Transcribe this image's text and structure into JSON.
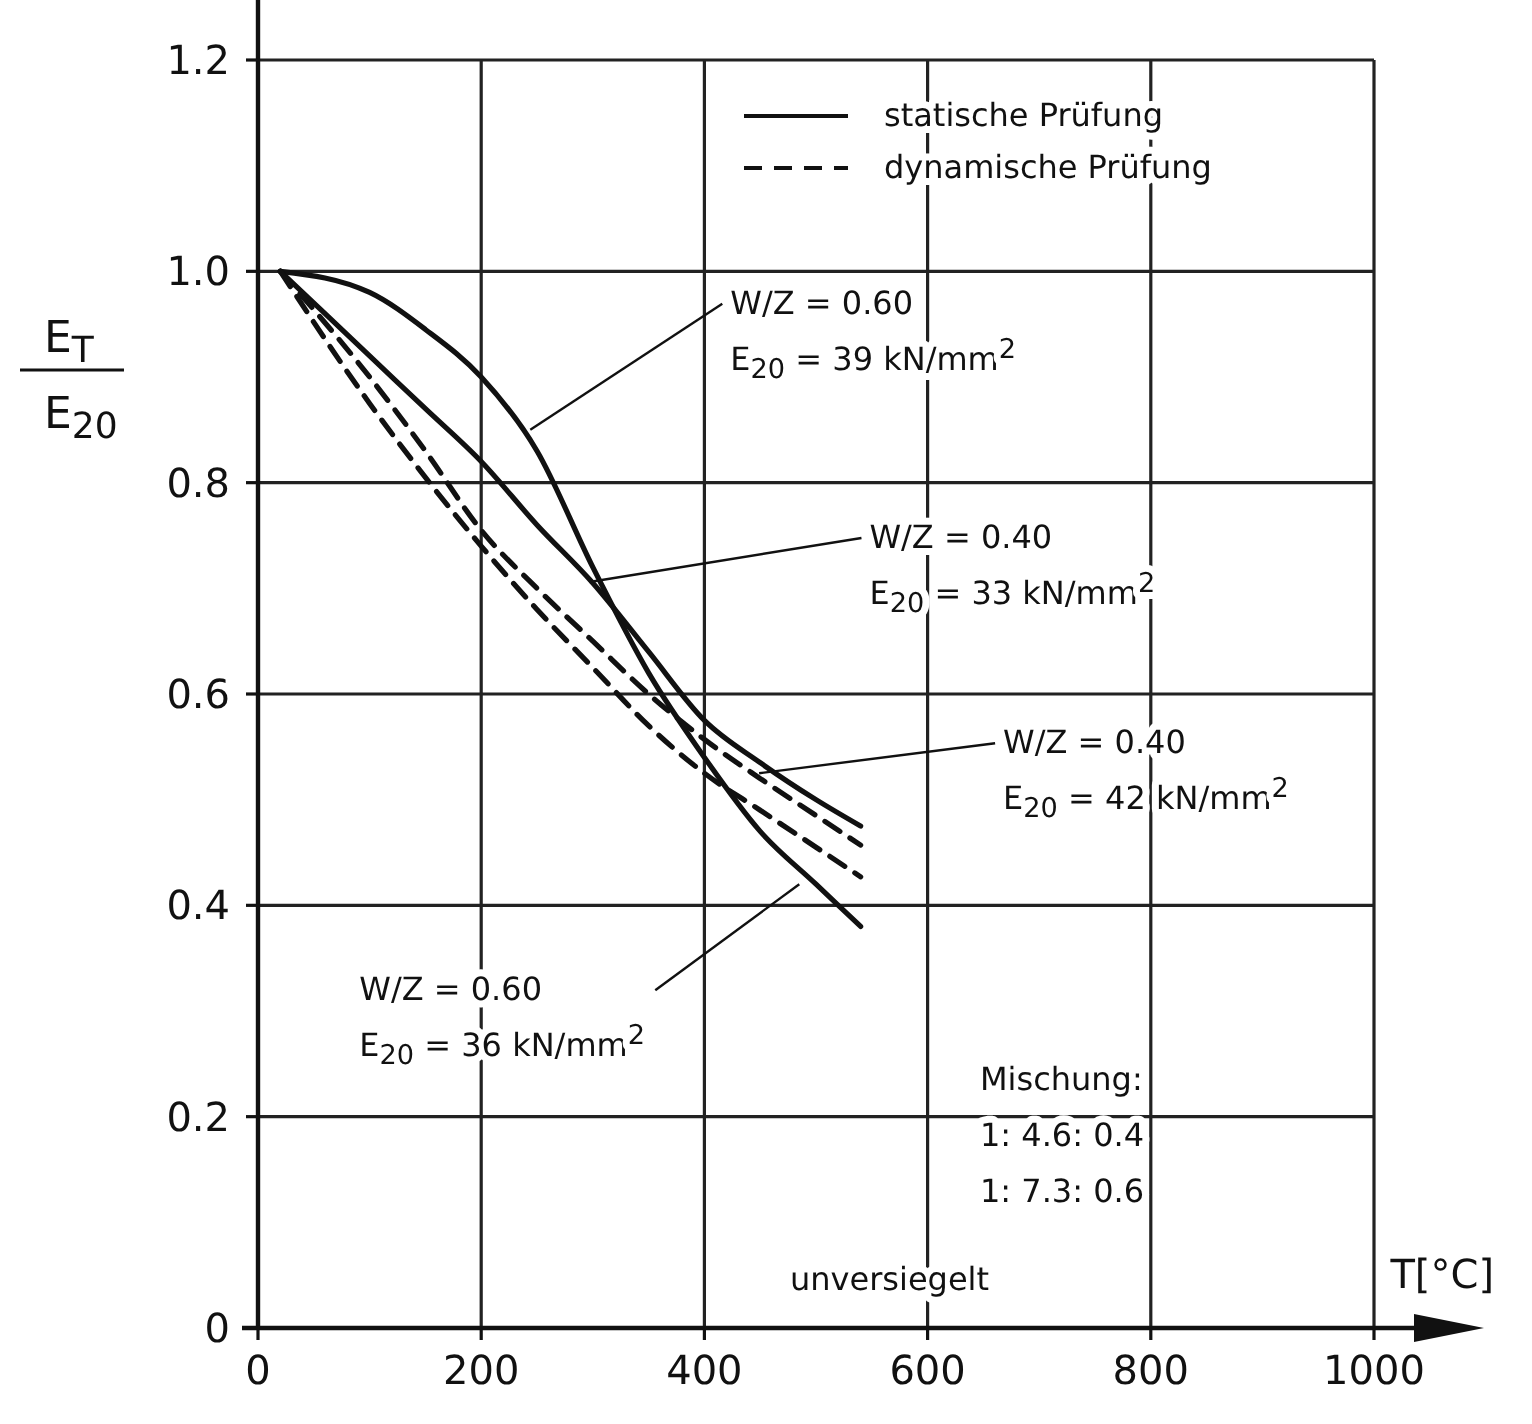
{
  "chart_data": {
    "type": "line",
    "xlabel": "T[°C]",
    "ylabel": "E$_{T}$\nE$_{20}$",
    "xlim": [
      0,
      1000
    ],
    "ylim": [
      0,
      1.2
    ],
    "xticks": [
      0,
      200,
      400,
      600,
      800,
      1000
    ],
    "yticks": [
      0,
      {
        "value": 0.2,
        "label": "0.2"
      },
      {
        "value": 0.4,
        "label": "0.4"
      },
      {
        "value": 0.6,
        "label": "0.6"
      },
      {
        "value": 0.8,
        "label": "0.8"
      },
      {
        "value": 1.0,
        "label": "1.0"
      },
      {
        "value": 1.2,
        "label": "1.2"
      }
    ],
    "grid": true,
    "legend": "top right",
    "marker": "none",
    "series": [
      {
        "name": "statische Prüfung",
        "color": "#111111",
        "line_style": "solid",
        "x": [
          20,
          100,
          150,
          200,
          250,
          300,
          350,
          400,
          450,
          500,
          540
        ],
        "values": [
          1.0,
          0.98,
          0.945,
          0.9,
          0.83,
          0.72,
          0.62,
          0.54,
          0.47,
          0.42,
          0.38
        ]
      },
      {
        "color": "#111111",
        "line_style": "solid",
        "x": [
          20,
          100,
          150,
          200,
          250,
          300,
          350,
          400,
          450,
          500,
          540
        ],
        "values": [
          1.0,
          0.92,
          0.87,
          0.82,
          0.76,
          0.705,
          0.64,
          0.575,
          0.535,
          0.5,
          0.475
        ]
      },
      {
        "name": "dynamische Prüfung",
        "color": "#111111",
        "line_style": "dashed",
        "x": [
          20,
          100,
          150,
          200,
          250,
          300,
          350,
          400,
          450,
          500,
          540
        ],
        "values": [
          1.0,
          0.9,
          0.83,
          0.755,
          0.7,
          0.65,
          0.6,
          0.557,
          0.52,
          0.485,
          0.457
        ]
      },
      {
        "color": "#111111",
        "line_style": "dashed",
        "x": [
          20,
          100,
          150,
          200,
          250,
          300,
          350,
          400,
          450,
          500,
          540
        ],
        "values": [
          1.0,
          0.875,
          0.805,
          0.74,
          0.68,
          0.625,
          0.57,
          0.525,
          0.49,
          0.455,
          0.427
        ]
      }
    ],
    "annotations": [
      {
        "text": "W/Z = 0.60\nE$_{20}$ = 39 kN/mm$^{2}$",
        "x": 244,
        "y": 0.85
      },
      {
        "text": "W/Z = 0.40\nE$_{20}$ = 33 kN/mm$^{2}$",
        "x": 297,
        "y": 0.706
      },
      {
        "text": "W/Z = 0.40\nE$_{20}$ = 42 kN/mm$^{2}$",
        "x": 449,
        "y": 0.525
      },
      {
        "text": "W/Z = 0.60\nE$_{20}$ = 36 kN/mm$^{2}$",
        "x": 485,
        "y": 0.42
      },
      "Mischung:\n1: 4.6: 0.4\n1: 7.3: 0.6",
      "unversiegelt"
    ]
  }
}
